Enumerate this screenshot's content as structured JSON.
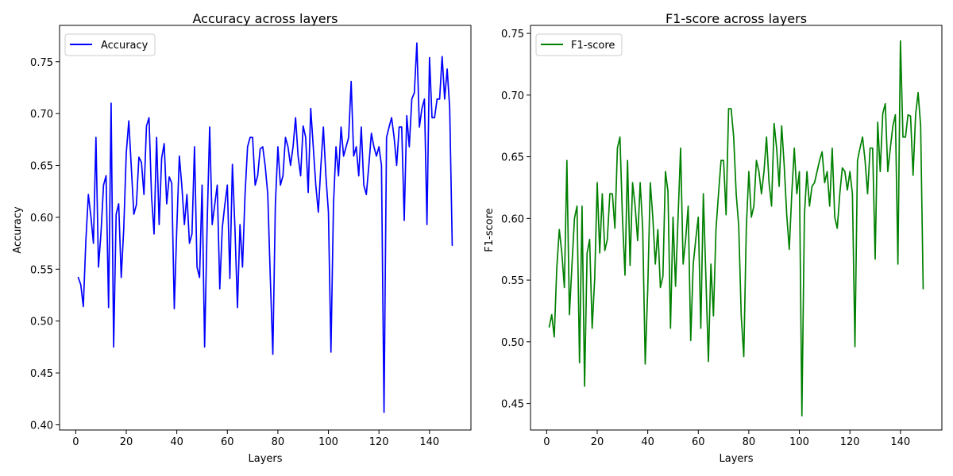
{
  "chart_data": [
    {
      "type": "line",
      "title": "Accuracy across layers",
      "xlabel": "Layers",
      "ylabel": "Accuracy",
      "xlim": [
        -6.4,
        156.4
      ],
      "ylim": [
        0.395,
        0.785
      ],
      "xticks": [
        0,
        20,
        40,
        60,
        80,
        100,
        120,
        140
      ],
      "xtick_labels": [
        "0",
        "20",
        "40",
        "60",
        "80",
        "100",
        "120",
        "140"
      ],
      "yticks": [
        0.4,
        0.45,
        0.5,
        0.55,
        0.6,
        0.65,
        0.7,
        0.75
      ],
      "ytick_labels": [
        "0.40",
        "0.45",
        "0.50",
        "0.55",
        "0.60",
        "0.65",
        "0.70",
        "0.75"
      ],
      "grid": false,
      "legend_position": "top-left",
      "series": [
        {
          "name": "Accuracy",
          "color": "#0000ff",
          "x": [
            1,
            2,
            3,
            4,
            5,
            6,
            7,
            8,
            9,
            10,
            11,
            12,
            13,
            14,
            15,
            16,
            17,
            18,
            19,
            20,
            21,
            22,
            23,
            24,
            25,
            26,
            27,
            28,
            29,
            30,
            31,
            32,
            33,
            34,
            35,
            36,
            37,
            38,
            39,
            40,
            41,
            42,
            43,
            44,
            45,
            46,
            47,
            48,
            49,
            50,
            51,
            52,
            53,
            54,
            55,
            56,
            57,
            58,
            59,
            60,
            61,
            62,
            63,
            64,
            65,
            66,
            67,
            68,
            69,
            70,
            71,
            72,
            73,
            74,
            75,
            76,
            77,
            78,
            79,
            80,
            81,
            82,
            83,
            84,
            85,
            86,
            87,
            88,
            89,
            90,
            91,
            92,
            93,
            94,
            95,
            96,
            97,
            98,
            99,
            100,
            101,
            102,
            103,
            104,
            105,
            106,
            107,
            108,
            109,
            110,
            111,
            112,
            113,
            114,
            115,
            116,
            117,
            118,
            119,
            120,
            121,
            122,
            123,
            124,
            125,
            126,
            127,
            128,
            129,
            130,
            131,
            132,
            133,
            134,
            135,
            136,
            137,
            138,
            139,
            140,
            141,
            142,
            143,
            144,
            145,
            146,
            147,
            148,
            149
          ],
          "y": [
            0.542,
            0.535,
            0.514,
            0.577,
            0.622,
            0.601,
            0.575,
            0.677,
            0.552,
            0.585,
            0.631,
            0.64,
            0.513,
            0.71,
            0.475,
            0.603,
            0.613,
            0.542,
            0.589,
            0.662,
            0.693,
            0.648,
            0.603,
            0.612,
            0.658,
            0.653,
            0.622,
            0.688,
            0.696,
            0.62,
            0.584,
            0.677,
            0.593,
            0.657,
            0.671,
            0.613,
            0.639,
            0.633,
            0.512,
            0.59,
            0.659,
            0.63,
            0.593,
            0.622,
            0.575,
            0.584,
            0.668,
            0.552,
            0.542,
            0.631,
            0.475,
            0.593,
            0.687,
            0.593,
            0.612,
            0.631,
            0.531,
            0.59,
            0.612,
            0.631,
            0.541,
            0.651,
            0.59,
            0.513,
            0.593,
            0.552,
            0.622,
            0.668,
            0.677,
            0.677,
            0.631,
            0.64,
            0.666,
            0.668,
            0.649,
            0.622,
            0.542,
            0.468,
            0.612,
            0.668,
            0.631,
            0.64,
            0.677,
            0.668,
            0.65,
            0.668,
            0.696,
            0.659,
            0.64,
            0.688,
            0.677,
            0.624,
            0.705,
            0.668,
            0.631,
            0.605,
            0.649,
            0.687,
            0.64,
            0.605,
            0.47,
            0.612,
            0.668,
            0.64,
            0.687,
            0.659,
            0.668,
            0.677,
            0.731,
            0.659,
            0.668,
            0.64,
            0.687,
            0.631,
            0.622,
            0.65,
            0.681,
            0.668,
            0.659,
            0.668,
            0.65,
            0.412,
            0.677,
            0.687,
            0.696,
            0.677,
            0.65,
            0.687,
            0.687,
            0.597,
            0.698,
            0.668,
            0.714,
            0.72,
            0.768,
            0.687,
            0.705,
            0.714,
            0.593,
            0.754,
            0.696,
            0.696,
            0.714,
            0.714,
            0.755,
            0.714,
            0.743,
            0.705,
            0.573
          ]
        }
      ]
    },
    {
      "type": "line",
      "title": "F1-score across layers",
      "xlabel": "Layers",
      "ylabel": "F1-score",
      "xlim": [
        -6.4,
        156.4
      ],
      "ylim": [
        0.4285,
        0.7565
      ],
      "xticks": [
        0,
        20,
        40,
        60,
        80,
        100,
        120,
        140
      ],
      "xtick_labels": [
        "0",
        "20",
        "40",
        "60",
        "80",
        "100",
        "120",
        "140"
      ],
      "yticks": [
        0.45,
        0.5,
        0.55,
        0.6,
        0.65,
        0.7,
        0.75
      ],
      "ytick_labels": [
        "0.45",
        "0.50",
        "0.55",
        "0.60",
        "0.65",
        "0.70",
        "0.75"
      ],
      "grid": false,
      "legend_position": "top-left",
      "series": [
        {
          "name": "F1-score",
          "color": "#008000",
          "x": [
            1,
            2,
            3,
            4,
            5,
            6,
            7,
            8,
            9,
            10,
            11,
            12,
            13,
            14,
            15,
            16,
            17,
            18,
            19,
            20,
            21,
            22,
            23,
            24,
            25,
            26,
            27,
            28,
            29,
            30,
            31,
            32,
            33,
            34,
            35,
            36,
            37,
            38,
            39,
            40,
            41,
            42,
            43,
            44,
            45,
            46,
            47,
            48,
            49,
            50,
            51,
            52,
            53,
            54,
            55,
            56,
            57,
            58,
            59,
            60,
            61,
            62,
            63,
            64,
            65,
            66,
            67,
            68,
            69,
            70,
            71,
            72,
            73,
            74,
            75,
            76,
            77,
            78,
            79,
            80,
            81,
            82,
            83,
            84,
            85,
            86,
            87,
            88,
            89,
            90,
            91,
            92,
            93,
            94,
            95,
            96,
            97,
            98,
            99,
            100,
            101,
            102,
            103,
            104,
            105,
            106,
            107,
            108,
            109,
            110,
            111,
            112,
            113,
            114,
            115,
            116,
            117,
            118,
            119,
            120,
            121,
            122,
            123,
            124,
            125,
            126,
            127,
            128,
            129,
            130,
            131,
            132,
            133,
            134,
            135,
            136,
            137,
            138,
            139,
            140,
            141,
            142,
            143,
            144,
            145,
            146,
            147,
            148,
            149
          ],
          "y": [
            0.512,
            0.522,
            0.504,
            0.56,
            0.591,
            0.572,
            0.544,
            0.647,
            0.522,
            0.562,
            0.6,
            0.61,
            0.483,
            0.61,
            0.464,
            0.572,
            0.583,
            0.511,
            0.551,
            0.629,
            0.572,
            0.62,
            0.574,
            0.583,
            0.62,
            0.62,
            0.592,
            0.657,
            0.666,
            0.6,
            0.554,
            0.647,
            0.562,
            0.629,
            0.61,
            0.582,
            0.629,
            0.592,
            0.482,
            0.543,
            0.629,
            0.601,
            0.563,
            0.591,
            0.544,
            0.553,
            0.638,
            0.622,
            0.511,
            0.601,
            0.545,
            0.601,
            0.657,
            0.563,
            0.583,
            0.61,
            0.501,
            0.563,
            0.583,
            0.601,
            0.511,
            0.62,
            0.553,
            0.484,
            0.563,
            0.521,
            0.591,
            0.62,
            0.647,
            0.647,
            0.603,
            0.689,
            0.689,
            0.666,
            0.62,
            0.594,
            0.521,
            0.488,
            0.592,
            0.638,
            0.601,
            0.61,
            0.647,
            0.638,
            0.62,
            0.638,
            0.666,
            0.629,
            0.61,
            0.677,
            0.657,
            0.626,
            0.675,
            0.643,
            0.603,
            0.575,
            0.62,
            0.657,
            0.62,
            0.638,
            0.44,
            0.603,
            0.638,
            0.61,
            0.626,
            0.629,
            0.638,
            0.647,
            0.654,
            0.629,
            0.638,
            0.61,
            0.657,
            0.601,
            0.592,
            0.62,
            0.641,
            0.638,
            0.623,
            0.638,
            0.62,
            0.496,
            0.647,
            0.657,
            0.666,
            0.647,
            0.62,
            0.657,
            0.657,
            0.567,
            0.678,
            0.638,
            0.685,
            0.693,
            0.638,
            0.657,
            0.675,
            0.684,
            0.563,
            0.744,
            0.666,
            0.666,
            0.684,
            0.683,
            0.635,
            0.684,
            0.702,
            0.675,
            0.543
          ]
        }
      ]
    }
  ]
}
